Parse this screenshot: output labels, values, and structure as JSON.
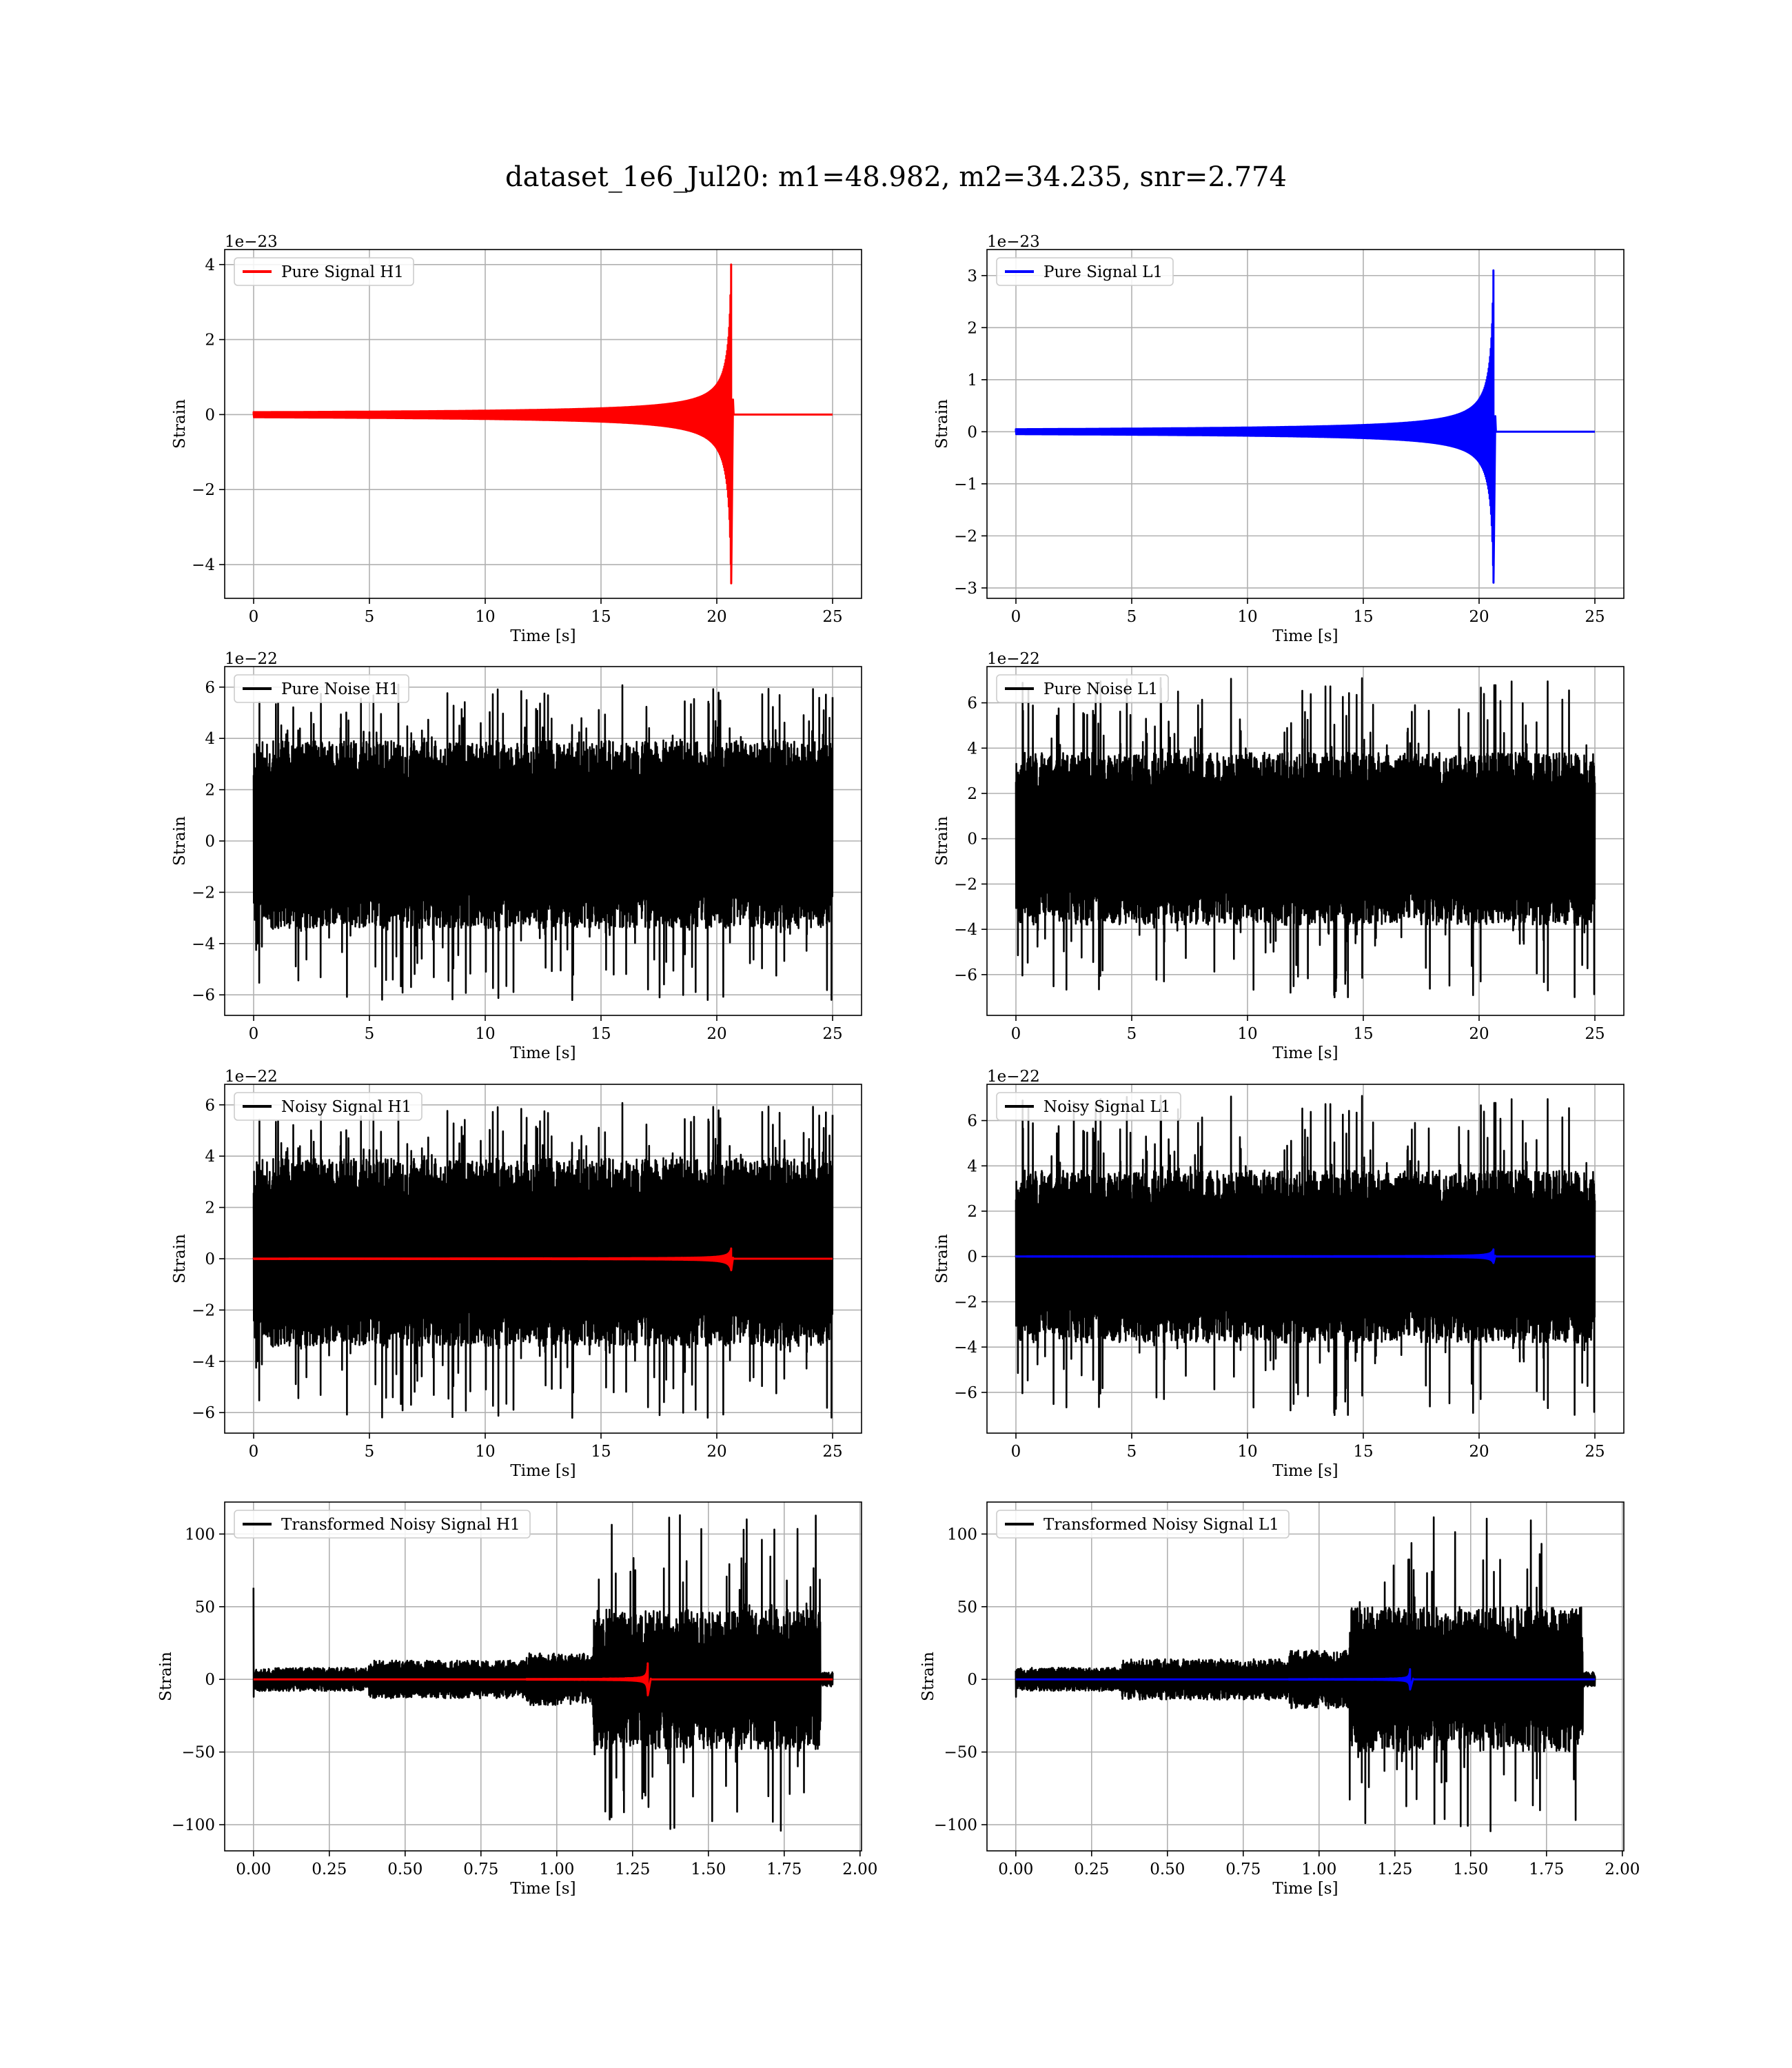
{
  "figure": {
    "title": "dataset_1e6_Jul20: m1=48.982, m2=34.235, snr=2.774"
  },
  "colors": {
    "h1_signal": "#ff0000",
    "l1_signal": "#0000ff",
    "noise": "#000000",
    "grid": "#b0b0b0"
  },
  "chart_data": [
    {
      "id": "pure-signal-h1",
      "type": "line",
      "row": 0,
      "col": 0,
      "xlabel": "Time [s]",
      "ylabel": "Strain",
      "multiplier": "1e−23",
      "xlim": [
        -1.25,
        26.25
      ],
      "ylim": [
        -4.9,
        4.4
      ],
      "xticks": [
        0,
        5,
        10,
        15,
        20,
        25
      ],
      "xtick_labels": [
        "0",
        "5",
        "10",
        "15",
        "20",
        "25"
      ],
      "yticks": [
        -4,
        -2,
        0,
        2,
        4
      ],
      "ytick_labels": [
        "−4",
        "−2",
        "0",
        "2",
        "4"
      ],
      "grid": true,
      "legend": "top-left",
      "series": [
        {
          "name": "Pure Signal H1",
          "color": "#ff0000",
          "kind": "chirp",
          "x_start": 0,
          "x_end": 25,
          "t_merge": 20.62,
          "amp_max": 4.0,
          "amp_min": -4.5,
          "ringdown_amp": 0.4,
          "ring_end": 20.7
        }
      ]
    },
    {
      "id": "pure-signal-l1",
      "type": "line",
      "row": 0,
      "col": 1,
      "xlabel": "Time [s]",
      "ylabel": "Strain",
      "multiplier": "1e−23",
      "xlim": [
        -1.25,
        26.25
      ],
      "ylim": [
        -3.2,
        3.5
      ],
      "xticks": [
        0,
        5,
        10,
        15,
        20,
        25
      ],
      "xtick_labels": [
        "0",
        "5",
        "10",
        "15",
        "20",
        "25"
      ],
      "yticks": [
        -3,
        -2,
        -1,
        0,
        1,
        2,
        3
      ],
      "ytick_labels": [
        "−3",
        "−2",
        "−1",
        "0",
        "1",
        "2",
        "3"
      ],
      "grid": true,
      "legend": "top-left",
      "series": [
        {
          "name": "Pure Signal L1",
          "color": "#0000ff",
          "kind": "chirp",
          "x_start": 0,
          "x_end": 25,
          "t_merge": 20.62,
          "amp_max": 3.1,
          "amp_min": -2.9,
          "ringdown_amp": 0.3,
          "ring_end": 20.7
        }
      ]
    },
    {
      "id": "pure-noise-h1",
      "type": "line",
      "row": 1,
      "col": 0,
      "xlabel": "Time [s]",
      "ylabel": "Strain",
      "multiplier": "1e−22",
      "xlim": [
        -1.25,
        26.25
      ],
      "ylim": [
        -6.8,
        6.8
      ],
      "xticks": [
        0,
        5,
        10,
        15,
        20,
        25
      ],
      "xtick_labels": [
        "0",
        "5",
        "10",
        "15",
        "20",
        "25"
      ],
      "yticks": [
        -6,
        -4,
        -2,
        0,
        2,
        4,
        6
      ],
      "ytick_labels": [
        "−6",
        "−4",
        "−2",
        "0",
        "2",
        "4",
        "6"
      ],
      "grid": true,
      "legend": "top-left",
      "series": [
        {
          "name": "Pure Noise H1",
          "color": "#000000",
          "kind": "noise",
          "x_start": 0,
          "x_end": 25,
          "seed": 11,
          "band_hi": 3.9,
          "band_lo": -3.4,
          "peak_max": 6.1,
          "peak_min": -6.2
        }
      ]
    },
    {
      "id": "pure-noise-l1",
      "type": "line",
      "row": 1,
      "col": 1,
      "xlabel": "Time [s]",
      "ylabel": "Strain",
      "multiplier": "1e−22",
      "xlim": [
        -1.25,
        26.25
      ],
      "ylim": [
        -7.8,
        7.6
      ],
      "xticks": [
        0,
        5,
        10,
        15,
        20,
        25
      ],
      "xtick_labels": [
        "0",
        "5",
        "10",
        "15",
        "20",
        "25"
      ],
      "yticks": [
        -6,
        -4,
        -2,
        0,
        2,
        4,
        6
      ],
      "ytick_labels": [
        "−6",
        "−4",
        "−2",
        "0",
        "2",
        "4",
        "6"
      ],
      "grid": true,
      "legend": "top-left",
      "series": [
        {
          "name": "Pure Noise L1",
          "color": "#000000",
          "kind": "noise",
          "x_start": 0,
          "x_end": 25,
          "seed": 23,
          "band_hi": 3.8,
          "band_lo": -3.8,
          "peak_max": 7.1,
          "peak_min": -7.0
        }
      ]
    },
    {
      "id": "noisy-signal-h1",
      "type": "line",
      "row": 2,
      "col": 0,
      "xlabel": "Time [s]",
      "ylabel": "Strain",
      "multiplier": "1e−22",
      "xlim": [
        -1.25,
        26.25
      ],
      "ylim": [
        -6.8,
        6.8
      ],
      "xticks": [
        0,
        5,
        10,
        15,
        20,
        25
      ],
      "xtick_labels": [
        "0",
        "5",
        "10",
        "15",
        "20",
        "25"
      ],
      "yticks": [
        -6,
        -4,
        -2,
        0,
        2,
        4,
        6
      ],
      "ytick_labels": [
        "−6",
        "−4",
        "−2",
        "0",
        "2",
        "4",
        "6"
      ],
      "grid": true,
      "legend": "top-left",
      "series": [
        {
          "name": "Noisy Signal H1",
          "color": "#000000",
          "kind": "noise",
          "x_start": 0,
          "x_end": 25,
          "seed": 11,
          "band_hi": 3.9,
          "band_lo": -3.4,
          "peak_max": 6.1,
          "peak_min": -6.2
        },
        {
          "color": "#ff0000",
          "kind": "chirp",
          "x_start": 0,
          "x_end": 25,
          "t_merge": 20.62,
          "amp_max": 0.4,
          "amp_min": -0.45,
          "ringdown_amp": 0.04,
          "ring_end": 20.7
        }
      ]
    },
    {
      "id": "noisy-signal-l1",
      "type": "line",
      "row": 2,
      "col": 1,
      "xlabel": "Time [s]",
      "ylabel": "Strain",
      "multiplier": "1e−22",
      "xlim": [
        -1.25,
        26.25
      ],
      "ylim": [
        -7.8,
        7.6
      ],
      "xticks": [
        0,
        5,
        10,
        15,
        20,
        25
      ],
      "xtick_labels": [
        "0",
        "5",
        "10",
        "15",
        "20",
        "25"
      ],
      "yticks": [
        -6,
        -4,
        -2,
        0,
        2,
        4,
        6
      ],
      "ytick_labels": [
        "−6",
        "−4",
        "−2",
        "0",
        "2",
        "4",
        "6"
      ],
      "grid": true,
      "legend": "top-left",
      "series": [
        {
          "name": "Noisy Signal L1",
          "color": "#000000",
          "kind": "noise",
          "x_start": 0,
          "x_end": 25,
          "seed": 23,
          "band_hi": 3.8,
          "band_lo": -3.8,
          "peak_max": 7.1,
          "peak_min": -7.0
        },
        {
          "color": "#0000ff",
          "kind": "chirp",
          "x_start": 0,
          "x_end": 25,
          "t_merge": 20.62,
          "amp_max": 0.31,
          "amp_min": -0.29,
          "ringdown_amp": 0.03,
          "ring_end": 20.7
        }
      ]
    },
    {
      "id": "transformed-noisy-signal-h1",
      "type": "line",
      "row": 3,
      "col": 0,
      "xlabel": "Time [s]",
      "ylabel": "Strain",
      "multiplier": "",
      "xlim": [
        -0.095,
        2.005
      ],
      "ylim": [
        -118,
        122
      ],
      "xticks": [
        0,
        0.25,
        0.5,
        0.75,
        1.0,
        1.25,
        1.5,
        1.75,
        2.0
      ],
      "xtick_labels": [
        "0.00",
        "0.25",
        "0.50",
        "0.75",
        "1.00",
        "1.25",
        "1.50",
        "1.75",
        "2.00"
      ],
      "yticks": [
        -100,
        -50,
        0,
        50,
        100
      ],
      "ytick_labels": [
        "−100",
        "−50",
        "0",
        "50",
        "100"
      ],
      "grid": true,
      "legend": "top-left",
      "series": [
        {
          "name": "Transformed Noisy Signal H1",
          "color": "#000000",
          "kind": "whitened",
          "x_start": 0,
          "x_end": 1.91,
          "seed": 37,
          "spike_at_start": 63,
          "segments": [
            [
              0,
              0.38,
              8
            ],
            [
              0.38,
              0.9,
              13
            ],
            [
              0.9,
              1.12,
              18
            ],
            [
              1.12,
              1.87,
              48
            ],
            [
              1.87,
              1.91,
              5
            ]
          ],
          "peak_max": 113,
          "peak_min": -105
        },
        {
          "color": "#ff0000",
          "kind": "chirp",
          "x_start": 0,
          "x_end": 1.91,
          "t_merge": 1.3,
          "t_start": 0.9,
          "amp_max": 11,
          "amp_min": -11,
          "ringdown_amp": 0.5,
          "ring_end": 1.31
        }
      ]
    },
    {
      "id": "transformed-noisy-signal-l1",
      "type": "line",
      "row": 3,
      "col": 1,
      "xlabel": "Time [s]",
      "ylabel": "Strain",
      "multiplier": "",
      "xlim": [
        -0.095,
        2.005
      ],
      "ylim": [
        -118,
        122
      ],
      "xticks": [
        0,
        0.25,
        0.5,
        0.75,
        1.0,
        1.25,
        1.5,
        1.75,
        2.0
      ],
      "xtick_labels": [
        "0.00",
        "0.25",
        "0.50",
        "0.75",
        "1.00",
        "1.25",
        "1.50",
        "1.75",
        "2.00"
      ],
      "yticks": [
        -100,
        -50,
        0,
        50,
        100
      ],
      "ytick_labels": [
        "−100",
        "−50",
        "0",
        "50",
        "100"
      ],
      "grid": true,
      "legend": "top-left",
      "series": [
        {
          "name": "Transformed Noisy Signal L1",
          "color": "#000000",
          "kind": "whitened",
          "x_start": 0,
          "x_end": 1.91,
          "seed": 53,
          "spike_at_start": 6,
          "segments": [
            [
              0,
              0.35,
              8
            ],
            [
              0.35,
              0.9,
              14
            ],
            [
              0.9,
              1.1,
              20
            ],
            [
              1.1,
              1.87,
              50
            ],
            [
              1.87,
              1.91,
              5
            ]
          ],
          "peak_max": 113,
          "peak_min": -105
        },
        {
          "color": "#0000ff",
          "kind": "chirp",
          "x_start": 0,
          "x_end": 1.91,
          "t_merge": 1.3,
          "t_start": 0.9,
          "amp_max": 7,
          "amp_min": -7,
          "ringdown_amp": 0.5,
          "ring_end": 1.31
        }
      ]
    }
  ]
}
